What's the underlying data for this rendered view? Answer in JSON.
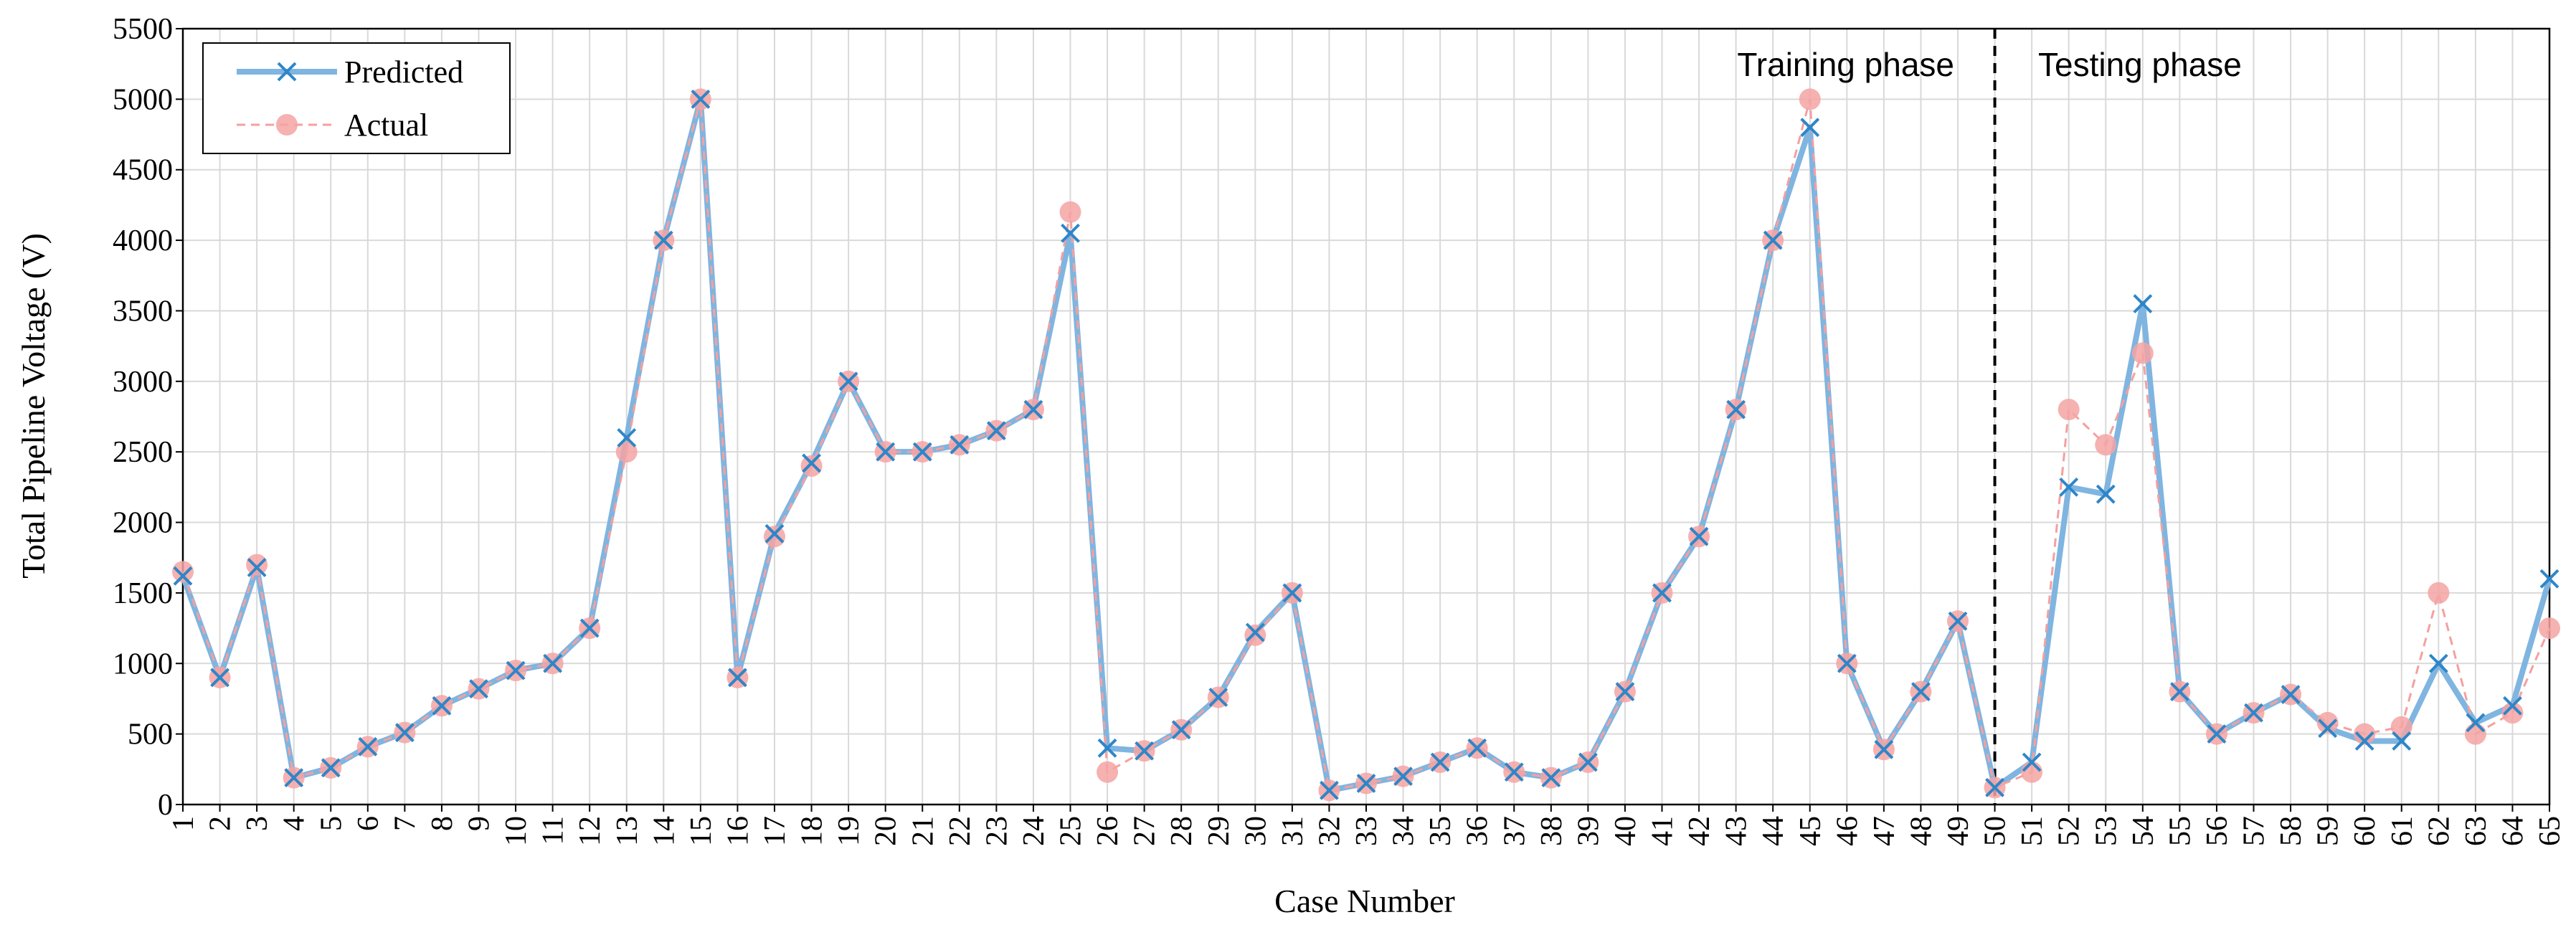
{
  "chart_data": {
    "type": "line",
    "title": "",
    "xlabel": "Case Number",
    "ylabel": "Total Pipeline Voltage (V)",
    "ylim": [
      0,
      5500
    ],
    "yticks": [
      0,
      500,
      1000,
      1500,
      2000,
      2500,
      3000,
      3500,
      4000,
      4500,
      5000,
      5500
    ],
    "grid": true,
    "legend_position": "top-left",
    "categories": [
      1,
      2,
      3,
      4,
      5,
      6,
      7,
      8,
      9,
      10,
      11,
      12,
      13,
      14,
      15,
      16,
      17,
      18,
      19,
      20,
      21,
      22,
      23,
      24,
      25,
      26,
      27,
      28,
      29,
      30,
      31,
      32,
      33,
      34,
      35,
      36,
      37,
      38,
      39,
      40,
      41,
      42,
      43,
      44,
      45,
      46,
      47,
      48,
      49,
      50,
      51,
      52,
      53,
      54,
      55,
      56,
      57,
      58,
      59,
      60,
      61,
      62,
      63,
      64,
      65
    ],
    "series": [
      {
        "name": "Predicted",
        "color": "#7fb5e0",
        "marker_color": "#2e86c8",
        "values": [
          1620,
          900,
          1680,
          190,
          260,
          410,
          510,
          700,
          820,
          950,
          1000,
          1250,
          2600,
          4000,
          5000,
          900,
          1920,
          2420,
          3000,
          2500,
          2500,
          2550,
          2650,
          2800,
          4050,
          400,
          380,
          530,
          760,
          1220,
          1500,
          100,
          150,
          200,
          300,
          400,
          230,
          190,
          300,
          800,
          1500,
          1900,
          2800,
          4000,
          4800,
          1000,
          390,
          800,
          1300,
          120,
          300,
          2250,
          2200,
          3550,
          800,
          500,
          650,
          780,
          540,
          450,
          450,
          1000,
          580,
          700,
          1600
        ]
      },
      {
        "name": "Actual",
        "color": "#f4a0a0",
        "marker_color": "#f5a3a3",
        "values": [
          1650,
          900,
          1700,
          190,
          260,
          410,
          510,
          700,
          820,
          950,
          1000,
          1250,
          2500,
          4000,
          5000,
          900,
          1900,
          2400,
          3000,
          2500,
          2500,
          2550,
          2650,
          2800,
          4200,
          230,
          380,
          530,
          760,
          1200,
          1500,
          100,
          150,
          200,
          300,
          400,
          230,
          190,
          300,
          800,
          1500,
          1900,
          2800,
          4000,
          5000,
          1000,
          390,
          800,
          1300,
          120,
          230,
          2800,
          2550,
          3200,
          800,
          500,
          650,
          780,
          580,
          500,
          550,
          1500,
          500,
          650,
          1250
        ]
      }
    ],
    "annotations": [
      {
        "text": "Training phase"
      },
      {
        "text": "Testing phase"
      }
    ],
    "divider_at_case": 50
  }
}
